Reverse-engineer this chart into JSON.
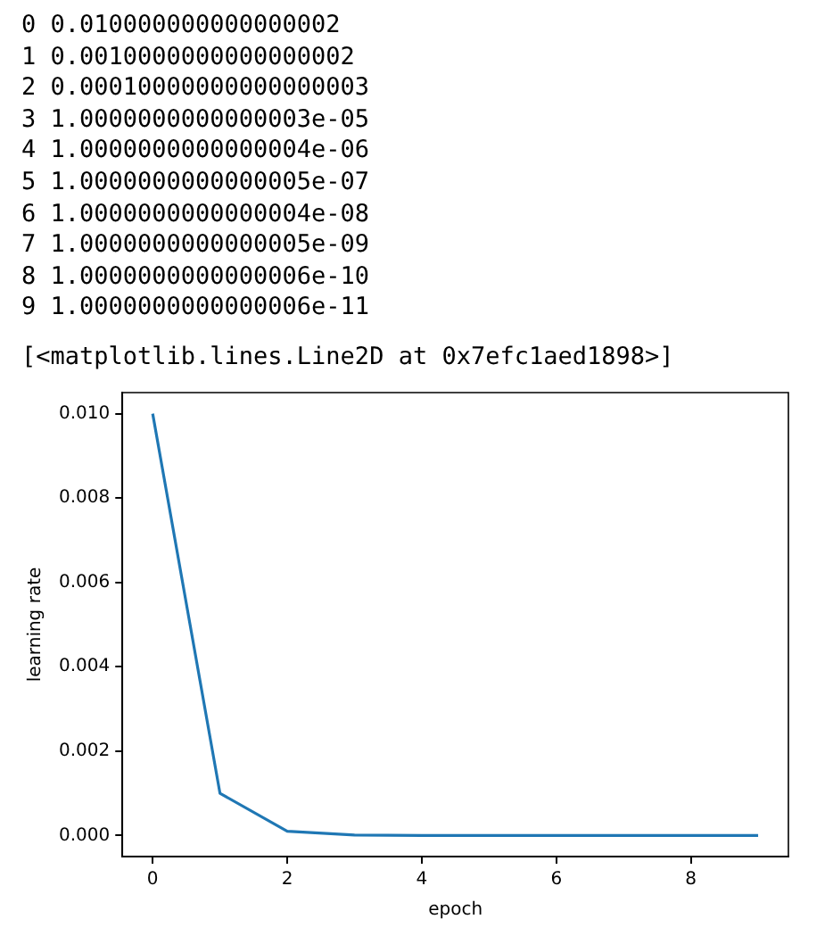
{
  "chart_data": {
    "type": "line",
    "xlabel": "epoch",
    "ylabel": "learning rate",
    "annotations": [
      "0 0.010000000000000002",
      "1 0.0010000000000000002",
      "2 0.00010000000000000003",
      "3 1.0000000000000003e-05",
      "4 1.0000000000000004e-06",
      "5 1.0000000000000005e-07",
      "6 1.0000000000000004e-08",
      "7 1.0000000000000005e-09",
      "8 1.0000000000000006e-10",
      "9 1.0000000000000006e-11",
      "[<matplotlib.lines.Line2D at 0x7efc1aed1898>]"
    ],
    "x": [
      0,
      1,
      2,
      3,
      4,
      5,
      6,
      7,
      8,
      9
    ],
    "series": [
      {
        "color": "#1f77b4",
        "values": [
          0.010000000000000002,
          0.0010000000000000002,
          0.00010000000000000003,
          1.0000000000000003e-05,
          1.0000000000000004e-06,
          1.0000000000000005e-07,
          1.0000000000000004e-08,
          1.0000000000000005e-09,
          1.0000000000000006e-10,
          1.0000000000000006e-11
        ]
      }
    ],
    "xlim": [
      -0.45,
      9.45
    ],
    "xticks": [
      0,
      2,
      4,
      6,
      8
    ],
    "ylim": [
      -0.0005,
      0.0105
    ],
    "yticks": [
      {
        "value": 0,
        "label": "0.000"
      },
      {
        "value": 0.002,
        "label": "0.002"
      },
      {
        "value": 0.004,
        "label": "0.004"
      },
      {
        "value": 0.006,
        "label": "0.006"
      },
      {
        "value": 0.008,
        "label": "0.008"
      },
      {
        "value": 0.01,
        "label": "0.010"
      }
    ],
    "grid": false,
    "legend": false,
    "marker": "none",
    "line_style": "solid"
  }
}
